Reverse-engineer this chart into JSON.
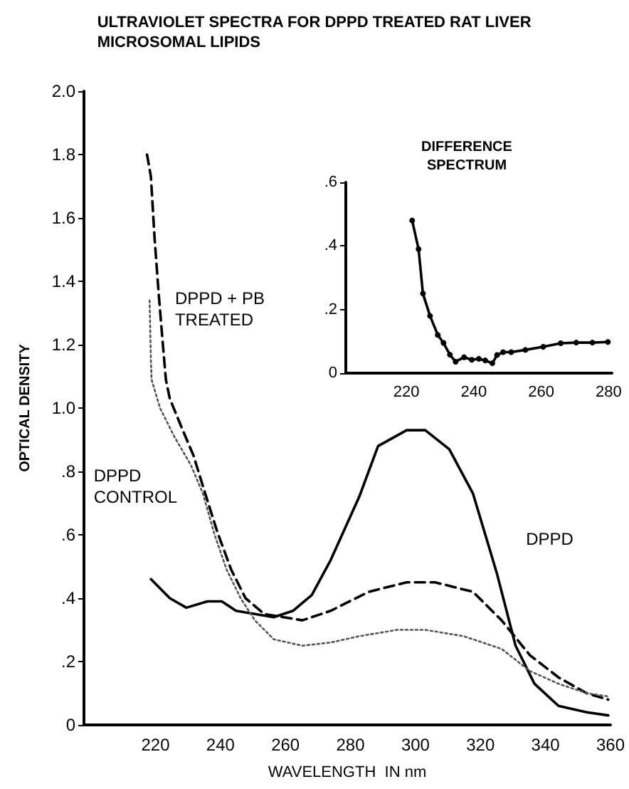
{
  "chart_data": [
    {
      "type": "line",
      "title": "ULTRAVIOLET SPECTRA FOR DPPD TREATED RAT LIVER\nMICROSOMAL LIPIDS",
      "xlabel": "WAVELENGTH  IN nm",
      "ylabel": "OPTICAL DENSITY",
      "xlim": [
        198,
        360
      ],
      "xticks": [
        220,
        240,
        260,
        280,
        300,
        320,
        340,
        360
      ],
      "ylim": [
        0,
        2
      ],
      "yticks": [
        0,
        {
          "value": 0.2,
          "label": ".2"
        },
        {
          "value": 0.4,
          "label": ".4"
        },
        {
          "value": 0.6,
          "label": ".6"
        },
        {
          "value": 0.8,
          "label": ".8"
        },
        {
          "value": 1,
          "label": "1.0"
        },
        {
          "value": 1.2,
          "label": "1.2"
        },
        {
          "value": 1.4,
          "label": "1.4"
        },
        {
          "value": 1.6,
          "label": "1.6"
        },
        {
          "value": 1.8,
          "label": "1.8"
        },
        {
          "value": 2,
          "label": "2.0"
        }
      ],
      "grid": false,
      "legend": false,
      "marker": "none",
      "series": [
        {
          "name": "DPPD",
          "color": "#000000",
          "line_style": "solid",
          "x": [
            218.6,
            224.4,
            229.5,
            236,
            240.4,
            244.8,
            250.6,
            256.4,
            262.3,
            268.1,
            273.9,
            282.7,
            288.5,
            297.3,
            303,
            310.4,
            317.7,
            325,
            330.8,
            336.6,
            344,
            352.7,
            359.3
          ],
          "values": [
            0.46,
            0.4,
            0.37,
            0.39,
            0.39,
            0.36,
            0.35,
            0.34,
            0.36,
            0.41,
            0.52,
            0.72,
            0.88,
            0.93,
            0.93,
            0.87,
            0.73,
            0.48,
            0.25,
            0.13,
            0.06,
            0.04,
            0.03
          ]
        },
        {
          "name": "DPPD + PB\nTREATED",
          "color": "#000000",
          "line_style": "dashed",
          "x": [
            217.4,
            218.6,
            219.7,
            221,
            222.2,
            223.2,
            224.4,
            228,
            231.7,
            235.3,
            239,
            243.3,
            247.7,
            253.5,
            259.4,
            265.2,
            273.9,
            285.6,
            297.3,
            306,
            317.7,
            326.5,
            335.2,
            344,
            352.7,
            359.3
          ],
          "values": [
            1.8,
            1.73,
            1.54,
            1.36,
            1.21,
            1.09,
            1.03,
            0.94,
            0.85,
            0.73,
            0.61,
            0.49,
            0.4,
            0.35,
            0.34,
            0.33,
            0.36,
            0.42,
            0.45,
            0.45,
            0.42,
            0.33,
            0.22,
            0.15,
            0.1,
            0.08
          ]
        },
        {
          "name": "DPPD\nCONTROL",
          "color": "#555555",
          "line_style": "dotted",
          "x": [
            218.2,
            218.6,
            218.8,
            221.4,
            225.8,
            230.9,
            234.6,
            238.2,
            241.9,
            246.2,
            250.6,
            256.4,
            265.2,
            273.9,
            282.7,
            294.4,
            303,
            314.8,
            326.5,
            335.2,
            344,
            352.7,
            359.3
          ],
          "values": [
            1.34,
            1.15,
            1.09,
            1.0,
            0.91,
            0.82,
            0.73,
            0.6,
            0.49,
            0.4,
            0.33,
            0.27,
            0.25,
            0.26,
            0.28,
            0.3,
            0.3,
            0.28,
            0.24,
            0.17,
            0.13,
            0.1,
            0.09
          ]
        }
      ]
    },
    {
      "type": "line",
      "title": "DIFFERENCE\nSPECTRUM",
      "xlim": [
        202,
        281
      ],
      "xticks": [
        220,
        240,
        260,
        280
      ],
      "ylim": [
        0,
        0.6
      ],
      "yticks": [
        0,
        {
          "value": 0.2,
          "label": ".2"
        },
        {
          "value": 0.4,
          "label": ".4"
        },
        {
          "value": 0.6,
          "label": ".6"
        }
      ],
      "grid": false,
      "legend": false,
      "marker": "circle",
      "line_style": "solid",
      "series": [
        {
          "color": "#000000",
          "x": [
            221.7,
            223.6,
            224.9,
            227,
            229.3,
            231,
            232.9,
            234.6,
            237.1,
            239.4,
            241.5,
            243.4,
            245.5,
            246.9,
            248.7,
            251.1,
            255.3,
            260.6,
            265.8,
            270.4,
            275.2,
            279.8
          ],
          "values": [
            0.48,
            0.39,
            0.25,
            0.18,
            0.12,
            0.095,
            0.058,
            0.036,
            0.05,
            0.042,
            0.045,
            0.04,
            0.031,
            0.057,
            0.066,
            0.066,
            0.073,
            0.083,
            0.094,
            0.096,
            0.096,
            0.098
          ]
        }
      ]
    }
  ]
}
